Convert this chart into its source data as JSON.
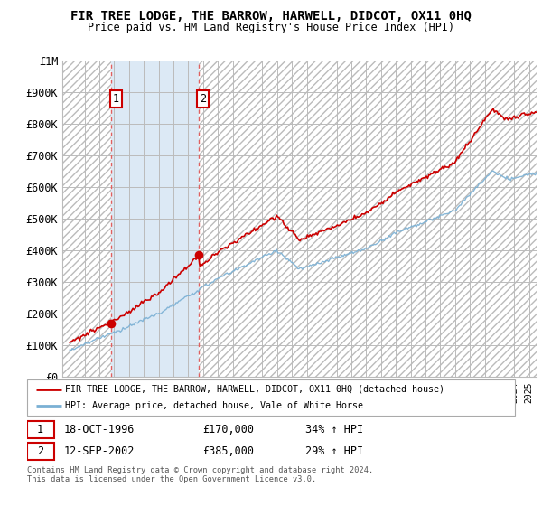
{
  "title": "FIR TREE LODGE, THE BARROW, HARWELL, DIDCOT, OX11 0HQ",
  "subtitle": "Price paid vs. HM Land Registry's House Price Index (HPI)",
  "legend_line1": "FIR TREE LODGE, THE BARROW, HARWELL, DIDCOT, OX11 0HQ (detached house)",
  "legend_line2": "HPI: Average price, detached house, Vale of White Horse",
  "sale1_date": "18-OCT-1996",
  "sale1_price": 170000,
  "sale1_pct": "34%",
  "sale2_date": "12-SEP-2002",
  "sale2_price": 385000,
  "sale2_pct": "29%",
  "footnote1": "Contains HM Land Registry data © Crown copyright and database right 2024.",
  "footnote2": "This data is licensed under the Open Government Licence v3.0.",
  "sale1_x": 1996.8,
  "sale2_x": 2002.7,
  "ylim": [
    0,
    1000000
  ],
  "xlim_left": 1993.5,
  "xlim_right": 2025.5,
  "red_line_color": "#cc0000",
  "blue_line_color": "#7ab0d4",
  "hatch_color": "#dddddd",
  "grid_color": "#bbbbbb",
  "dashed_line_color": "#e06060",
  "blue_fill_color": "#dce9f5",
  "background_color": "#ffffff",
  "box_edge_color": "#cc0000"
}
